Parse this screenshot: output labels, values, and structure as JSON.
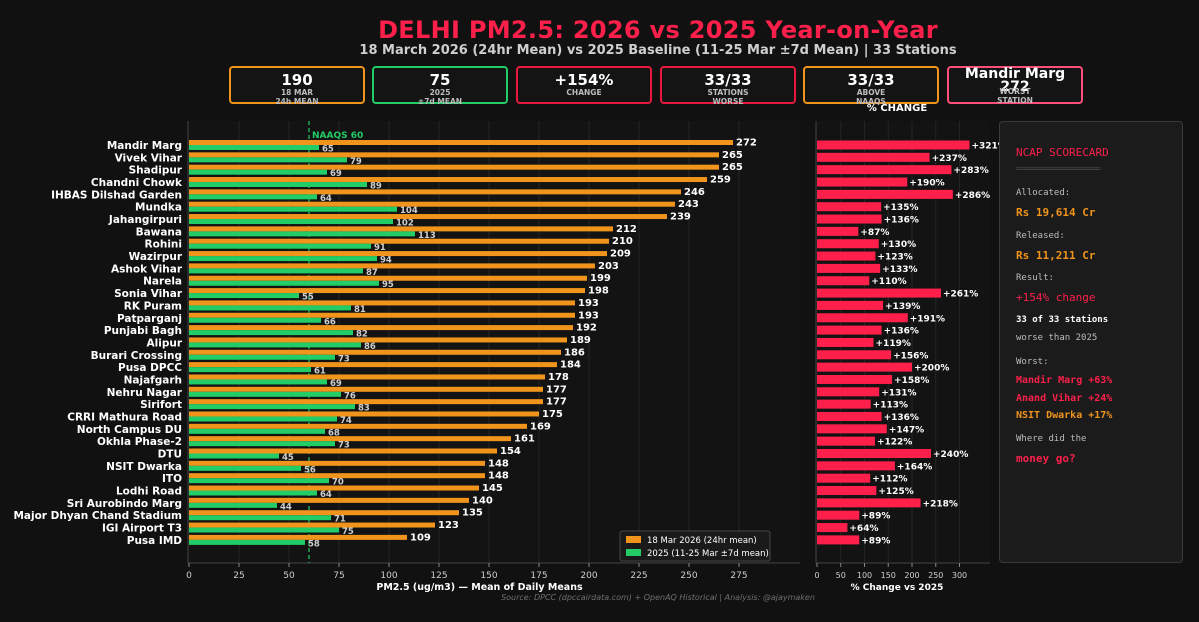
{
  "title": "DELHI PM2.5: 2026 vs 2025 Year-on-Year",
  "subtitle": "18 March 2026 (24hr Mean) vs 2025 Baseline (11-25 Mar ±7d Mean) | 33 Stations",
  "kpis": [
    {
      "value": "190",
      "label1": "18 MAR",
      "label2": "24h MEAN",
      "color": "#f0941c"
    },
    {
      "value": "75",
      "label1": "2025",
      "label2": "±7d MEAN",
      "color": "#22cc66"
    },
    {
      "value": "+154%",
      "label1": "CHANGE",
      "label2": "",
      "color": "#e8193f"
    },
    {
      "value": "33/33",
      "label1": "STATIONS",
      "label2": "WORSE",
      "color": "#e8193f"
    },
    {
      "value": "33/33",
      "label1": "ABOVE",
      "label2": "NAAQS",
      "color": "#f0941c"
    },
    {
      "value": "Mandir Marg",
      "value2": "272",
      "label1": "WORST",
      "label2": "STATION",
      "color": "#ff4f7a"
    }
  ],
  "colors": {
    "orange": "#f0941c",
    "green": "#22cc66",
    "red": "#ff1f4b"
  },
  "chart_data": [
    {
      "type": "bar",
      "orientation": "horizontal",
      "xlabel": "PM2.5 (ug/m3) — Mean of Daily Means",
      "xlim": [
        0,
        310
      ],
      "xticks": [
        0,
        25,
        50,
        75,
        100,
        125,
        150,
        175,
        200,
        225,
        250,
        275
      ],
      "reference_line": {
        "value": 60,
        "label": "NAAQS 60"
      },
      "legend": {
        "position": "lower-right",
        "entries": [
          "18 Mar 2026 (24hr mean)",
          "2025 (11-25 Mar ±7d mean)"
        ]
      },
      "categories": [
        "Mandir Marg",
        "Vivek Vihar",
        "Shadipur",
        "Chandni Chowk",
        "IHBAS Dilshad Garden",
        "Mundka",
        "Jahangirpuri",
        "Bawana",
        "Rohini",
        "Wazirpur",
        "Ashok Vihar",
        "Narela",
        "Sonia Vihar",
        "RK Puram",
        "Patparganj",
        "Punjabi Bagh",
        "Alipur",
        "Burari Crossing",
        "Pusa DPCC",
        "Najafgarh",
        "Nehru Nagar",
        "Sirifort",
        "CRRI Mathura Road",
        "North Campus DU",
        "Okhla Phase-2",
        "DTU",
        "NSIT Dwarka",
        "ITO",
        "Lodhi Road",
        "Sri Aurobindo Marg",
        "Major Dhyan Chand Stadium",
        "IGI Airport T3",
        "Pusa IMD"
      ],
      "series": [
        {
          "name": "18 Mar 2026 (24hr mean)",
          "values": [
            272,
            265,
            265,
            259,
            246,
            243,
            239,
            212,
            210,
            209,
            203,
            199,
            198,
            193,
            193,
            192,
            189,
            186,
            184,
            178,
            177,
            177,
            175,
            169,
            161,
            154,
            148,
            148,
            145,
            140,
            135,
            123,
            109
          ]
        },
        {
          "name": "2025 (11-25 Mar ±7d mean)",
          "values": [
            65,
            79,
            69,
            89,
            64,
            104,
            102,
            113,
            91,
            94,
            87,
            95,
            55,
            81,
            66,
            82,
            86,
            73,
            61,
            69,
            76,
            83,
            74,
            68,
            73,
            45,
            56,
            70,
            64,
            44,
            71,
            75,
            58
          ]
        }
      ]
    },
    {
      "type": "bar",
      "orientation": "horizontal",
      "title": "% CHANGE",
      "xlabel": "% Change vs 2025",
      "xlim": [
        0,
        340
      ],
      "xticks": [
        0,
        50,
        100,
        150,
        200,
        250,
        300
      ],
      "tick_labels": [
        "0",
        "50",
        "100",
        "150",
        "200",
        "250",
        "300"
      ],
      "values": [
        321,
        237,
        283,
        190,
        286,
        135,
        136,
        87,
        130,
        123,
        133,
        110,
        261,
        139,
        191,
        136,
        119,
        156,
        200,
        158,
        131,
        113,
        136,
        147,
        122,
        240,
        164,
        112,
        125,
        218,
        89,
        64,
        89
      ],
      "labels": [
        "+321%",
        "+237%",
        "+283%",
        "+190%",
        "+286%",
        "+135%",
        "+136%",
        "+87%",
        "+130%",
        "+123%",
        "+133%",
        "+110%",
        "+261%",
        "+139%",
        "+191%",
        "+136%",
        "+119%",
        "+156%",
        "+200%",
        "+158%",
        "+131%",
        "+113%",
        "+136%",
        "+147%",
        "+122%",
        "+240%",
        "+164%",
        "+112%",
        "+125%",
        "+218%",
        "+89%",
        "+64%",
        "+89%"
      ]
    }
  ],
  "scorecard": {
    "heading": "NCAP SCORECARD",
    "separator": "======================",
    "allocated_label": "Allocated:",
    "allocated_value": "Rs 19,614 Cr",
    "released_label": "Released:",
    "released_value": "Rs 11,211 Cr",
    "result_label": "Result:",
    "result_value": "+154% change",
    "stations_line1": "33 of 33 stations",
    "stations_line2": "worse than 2025",
    "worst_label": "Worst:",
    "worst": [
      "Mandir Marg +63%",
      "Anand Vihar +24%",
      "NSIT Dwarka +17%"
    ],
    "question1": "Where did the",
    "question2": "money go?"
  },
  "source": "Source: DPCC (dpccairdata.com) + OpenAQ Historical | Analysis: @ajaymaken"
}
